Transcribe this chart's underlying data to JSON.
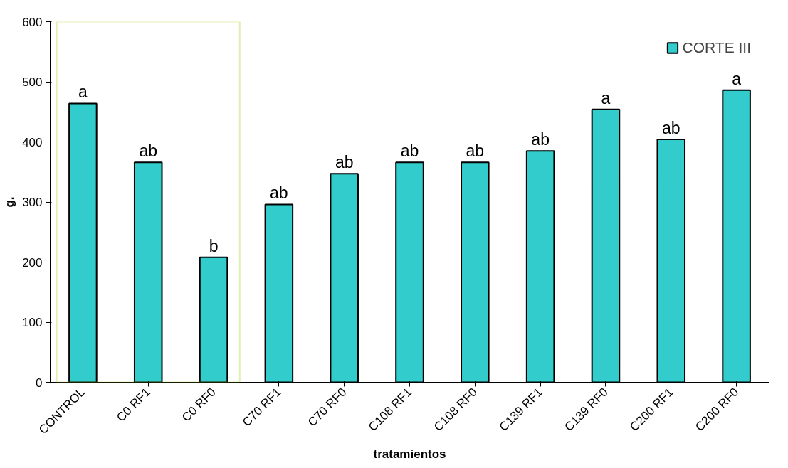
{
  "chart_data": {
    "type": "bar",
    "xlabel": "tratamientos",
    "ylabel": "g.",
    "categories": [
      "CONTROL",
      "C0 RF1",
      "C0 RF0",
      "C70 RF1",
      "C70 RF0",
      "C108 RF1",
      "C108 RF0",
      "C139 RF1",
      "C139 RF0",
      "C200 RF1",
      "C200 RF0"
    ],
    "series": [
      {
        "name": "CORTE III",
        "color": "#33cccc",
        "values": [
          464,
          366,
          208,
          296,
          347,
          366,
          366,
          385,
          454,
          404,
          486
        ],
        "value_labels": [
          "a",
          "ab",
          "b",
          "ab",
          "ab",
          "ab",
          "ab",
          "ab",
          "a",
          "ab",
          "a"
        ]
      }
    ],
    "ylim": [
      0,
      600
    ],
    "yticks": [
      0,
      100,
      200,
      300,
      400,
      500,
      600
    ],
    "grid": false,
    "legend": "top right"
  }
}
